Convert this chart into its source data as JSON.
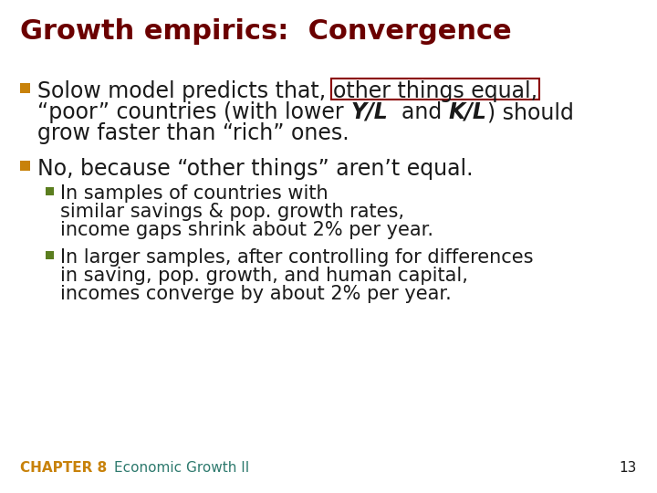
{
  "title": "Growth empirics:  Convergence",
  "title_color": "#6B0000",
  "title_fontsize": 22,
  "background_color": "#FFFFFF",
  "bullet_color": "#C8820A",
  "sub_bullet_color": "#5B7E1F",
  "text_color": "#1A1A1A",
  "footer_chapter": "CHAPTER 8",
  "footer_title": "   Economic Growth II",
  "footer_page": "13",
  "footer_color": "#C8820A",
  "footer_title_color": "#2E7A6E",
  "box_edge_color": "#8B0000",
  "fontsize_main": 17,
  "fontsize_sub": 15,
  "fontsize_footer": 11,
  "bullet1_pre": "Solow model predicts that, ",
  "bullet1_boxed": "other things equal,",
  "bullet1_line2_pre": "“poor” countries (with lower ",
  "bullet1_yl": "Y/L",
  "bullet1_mid": "  and ",
  "bullet1_kl": "K/L",
  "bullet1_line2_post": ") should",
  "bullet1_line3": "grow faster than “rich” ones.",
  "bullet2_text": "No, because “other things” aren’t equal.",
  "sub1_line1": "In samples of countries with",
  "sub1_line2": "similar savings & pop. growth rates,",
  "sub1_line3": "income gaps shrink about 2% per year.",
  "sub2_line1": "In larger samples, after controlling for differences",
  "sub2_line2": "in saving, pop. growth, and human capital,",
  "sub2_line3": "incomes converge by about 2% per year."
}
